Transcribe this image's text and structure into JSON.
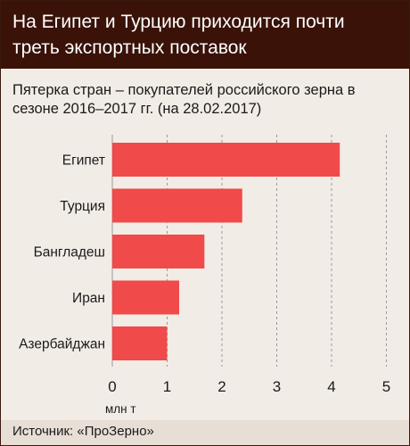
{
  "header": {
    "title": "На Египет и Турцию приходится почти треть экспортных поставок"
  },
  "subtitle": "Пятерка стран – покупателей российского зерна в сезоне 2016–2017 гг. (на 28.02.2017)",
  "chart_data": {
    "type": "bar",
    "orientation": "horizontal",
    "categories": [
      "Египет",
      "Турция",
      "Бангладеш",
      "Иран",
      "Азербайджан"
    ],
    "values": [
      4.15,
      2.37,
      1.68,
      1.22,
      1.0
    ],
    "xlabel": "млн т",
    "xlim": [
      0,
      5
    ],
    "xticks": [
      0,
      1,
      2,
      3,
      4,
      5
    ],
    "grid": "vertical dashed",
    "bar_color": "#f04a4a",
    "grid_color": "#9a9a9a"
  },
  "source": "Источник: «ПроЗерно»"
}
